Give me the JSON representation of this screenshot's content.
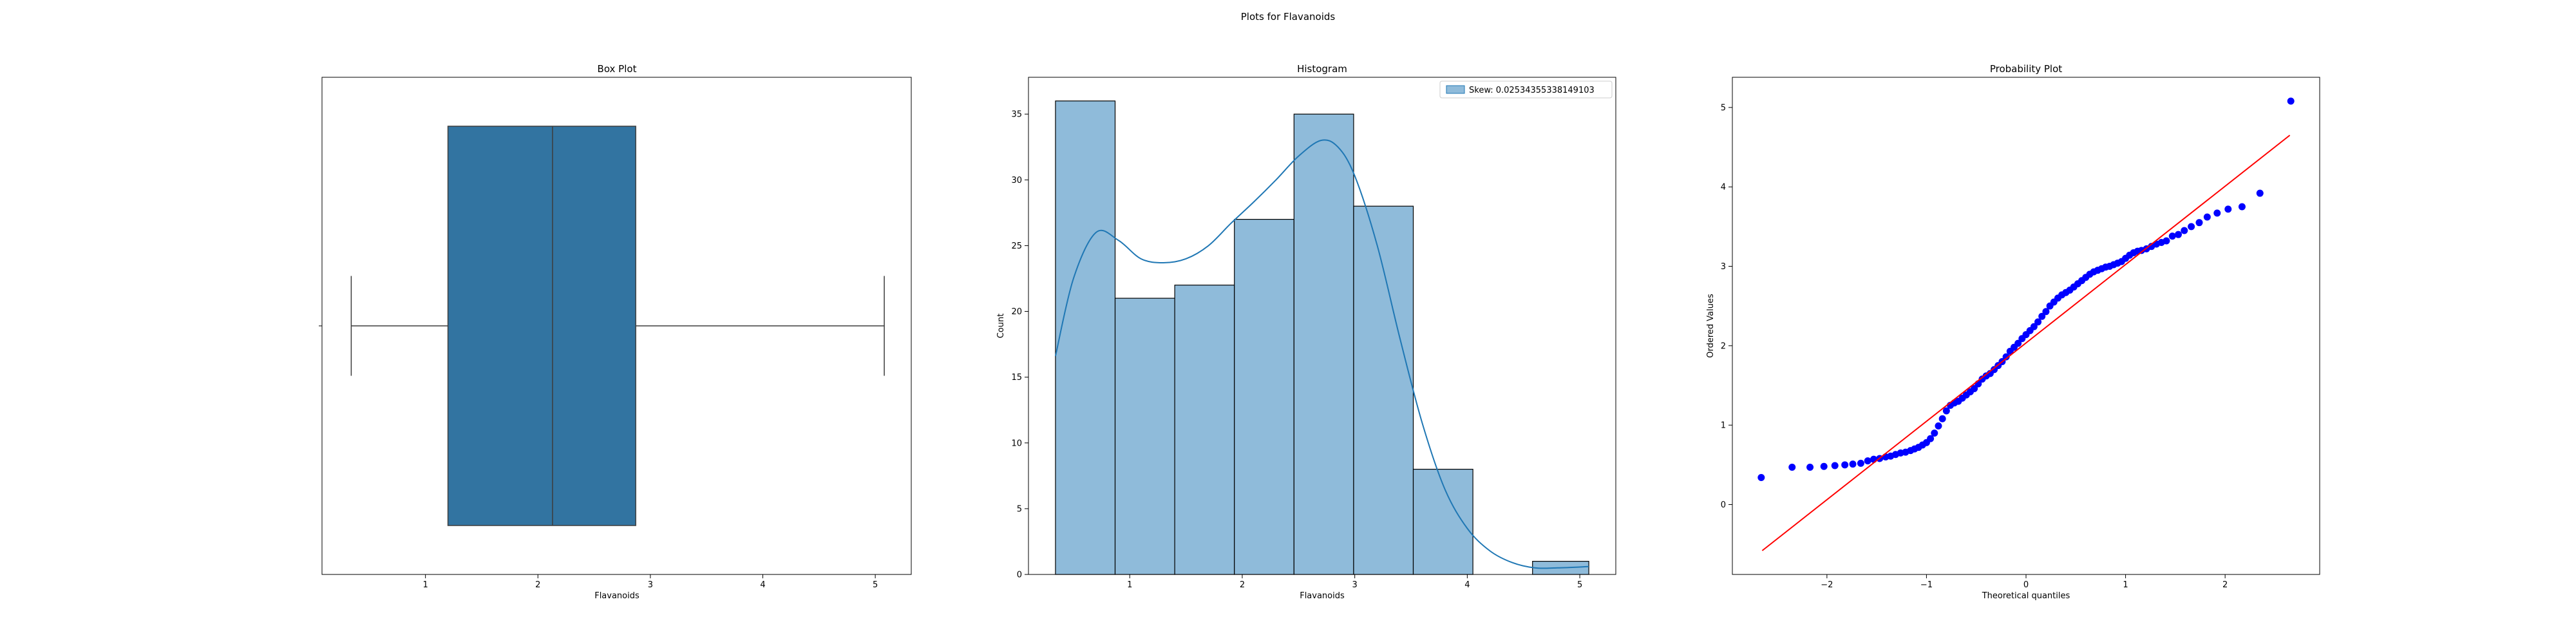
{
  "figure": {
    "title": "Plots for Flavanoids"
  },
  "chart_data": [
    {
      "type": "box",
      "title": "Box Plot",
      "xlabel": "Flavanoids",
      "ylabel": "",
      "xlim": [
        0.08,
        5.32
      ],
      "xticks": [
        1,
        2,
        3,
        4,
        5
      ],
      "color": "#3274a1",
      "stats": {
        "whisker_low": 0.34,
        "q1": 1.2,
        "median": 2.13,
        "q3": 2.87,
        "whisker_high": 5.08
      }
    },
    {
      "type": "bar",
      "title": "Histogram",
      "xlabel": "Flavanoids",
      "ylabel": "Count",
      "xlim": [
        0.1,
        5.32
      ],
      "ylim": [
        0,
        37.8
      ],
      "xticks": [
        1,
        2,
        3,
        4,
        5
      ],
      "yticks": [
        0,
        5,
        10,
        15,
        20,
        25,
        30,
        35
      ],
      "bin_edges": [
        0.34,
        0.87,
        1.4,
        1.93,
        2.46,
        2.99,
        3.52,
        4.05,
        4.58,
        5.08
      ],
      "counts": [
        36,
        21,
        22,
        27,
        35,
        28,
        8,
        0,
        1
      ],
      "bar_color": "#8fbbda",
      "line_color": "#1f77b4",
      "legend": {
        "label": "Skew: 0.02534355338149103",
        "position": "top-right"
      },
      "kde": {
        "x": [
          0.34,
          0.5,
          0.7,
          0.9,
          1.1,
          1.3,
          1.5,
          1.7,
          1.9,
          2.1,
          2.3,
          2.5,
          2.7,
          2.85,
          3.0,
          3.2,
          3.4,
          3.6,
          3.8,
          4.0,
          4.2,
          4.4,
          4.6,
          4.8,
          5.08
        ],
        "y": [
          16.6,
          22.5,
          26.0,
          25.4,
          24.0,
          23.7,
          24.0,
          25.0,
          26.7,
          28.3,
          30.0,
          31.8,
          33.0,
          32.5,
          30.3,
          25.0,
          18.0,
          11.5,
          6.5,
          3.5,
          1.8,
          0.9,
          0.5,
          0.5,
          0.6
        ]
      }
    },
    {
      "type": "scatter",
      "title": "Probability Plot",
      "xlabel": "Theoretical quantiles",
      "ylabel": "Ordered Values",
      "xlim": [
        -2.95,
        2.95
      ],
      "ylim": [
        -0.88,
        5.38
      ],
      "xticks": [
        -2,
        -1,
        0,
        1,
        2
      ],
      "yticks": [
        0,
        1,
        2,
        3,
        4,
        5
      ],
      "xtick_labels": [
        "−2",
        "−1",
        "0",
        "1",
        "2"
      ],
      "point_color": "#0000ff",
      "line_color": "#ff0000",
      "fit_line": {
        "x": [
          -2.65,
          2.65
        ],
        "y": [
          -0.58,
          4.65
        ]
      },
      "points": [
        [
          -2.66,
          0.34
        ],
        [
          -2.35,
          0.47
        ],
        [
          -2.17,
          0.47
        ],
        [
          -2.03,
          0.48
        ],
        [
          -1.92,
          0.49
        ],
        [
          -1.82,
          0.5
        ],
        [
          -1.74,
          0.51
        ],
        [
          -1.66,
          0.52
        ],
        [
          -1.59,
          0.55
        ],
        [
          -1.53,
          0.57
        ],
        [
          -1.47,
          0.58
        ],
        [
          -1.41,
          0.6
        ],
        [
          -1.36,
          0.61
        ],
        [
          -1.31,
          0.63
        ],
        [
          -1.26,
          0.65
        ],
        [
          -1.21,
          0.66
        ],
        [
          -1.16,
          0.68
        ],
        [
          -1.12,
          0.7
        ],
        [
          -1.08,
          0.72
        ],
        [
          -1.04,
          0.75
        ],
        [
          -1.0,
          0.78
        ],
        [
          -0.96,
          0.83
        ],
        [
          -0.92,
          0.9
        ],
        [
          -0.88,
          0.99
        ],
        [
          -0.84,
          1.08
        ],
        [
          -0.8,
          1.18
        ],
        [
          -0.76,
          1.25
        ],
        [
          -0.72,
          1.28
        ],
        [
          -0.68,
          1.3
        ],
        [
          -0.64,
          1.34
        ],
        [
          -0.6,
          1.38
        ],
        [
          -0.56,
          1.42
        ],
        [
          -0.52,
          1.46
        ],
        [
          -0.48,
          1.52
        ],
        [
          -0.44,
          1.58
        ],
        [
          -0.4,
          1.62
        ],
        [
          -0.36,
          1.65
        ],
        [
          -0.32,
          1.7
        ],
        [
          -0.28,
          1.75
        ],
        [
          -0.24,
          1.8
        ],
        [
          -0.2,
          1.86
        ],
        [
          -0.16,
          1.93
        ],
        [
          -0.12,
          1.98
        ],
        [
          -0.08,
          2.03
        ],
        [
          -0.04,
          2.09
        ],
        [
          0.0,
          2.14
        ],
        [
          0.04,
          2.19
        ],
        [
          0.08,
          2.24
        ],
        [
          0.12,
          2.3
        ],
        [
          0.16,
          2.37
        ],
        [
          0.2,
          2.43
        ],
        [
          0.24,
          2.5
        ],
        [
          0.28,
          2.55
        ],
        [
          0.32,
          2.6
        ],
        [
          0.36,
          2.64
        ],
        [
          0.4,
          2.67
        ],
        [
          0.44,
          2.7
        ],
        [
          0.48,
          2.74
        ],
        [
          0.52,
          2.78
        ],
        [
          0.56,
          2.82
        ],
        [
          0.6,
          2.86
        ],
        [
          0.64,
          2.9
        ],
        [
          0.68,
          2.93
        ],
        [
          0.72,
          2.95
        ],
        [
          0.76,
          2.97
        ],
        [
          0.8,
          2.99
        ],
        [
          0.84,
          3.0
        ],
        [
          0.88,
          3.02
        ],
        [
          0.92,
          3.04
        ],
        [
          0.96,
          3.06
        ],
        [
          1.0,
          3.1
        ],
        [
          1.04,
          3.14
        ],
        [
          1.08,
          3.17
        ],
        [
          1.12,
          3.19
        ],
        [
          1.16,
          3.2
        ],
        [
          1.21,
          3.22
        ],
        [
          1.26,
          3.25
        ],
        [
          1.31,
          3.28
        ],
        [
          1.36,
          3.3
        ],
        [
          1.41,
          3.32
        ],
        [
          1.47,
          3.38
        ],
        [
          1.53,
          3.4
        ],
        [
          1.59,
          3.45
        ],
        [
          1.66,
          3.5
        ],
        [
          1.74,
          3.55
        ],
        [
          1.82,
          3.62
        ],
        [
          1.92,
          3.67
        ],
        [
          2.03,
          3.72
        ],
        [
          2.17,
          3.75
        ],
        [
          2.35,
          3.92
        ],
        [
          2.66,
          5.08
        ]
      ]
    }
  ]
}
